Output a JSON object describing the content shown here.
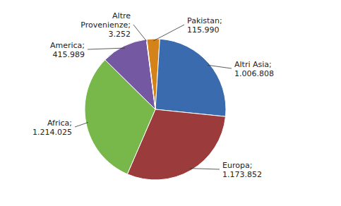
{
  "chart_data": {
    "type": "pie",
    "categories": [
      "Pakistan;",
      "Altri Asia;",
      "Europa;",
      "Africa;",
      "America;",
      "Altre\nProvenienze;"
    ],
    "values": [
      115990,
      1006808,
      1173852,
      1214025,
      415989,
      3252
    ],
    "value_labels": [
      "115.990",
      "1.006.808",
      "1.173.852",
      "1.214.025",
      "415.989",
      "3.252"
    ],
    "colors": [
      "#D4821A",
      "#3B6BAF",
      "#9C3B3B",
      "#78B84A",
      "#7558A2",
      "#CC7A1A"
    ],
    "data_labels": true
  }
}
